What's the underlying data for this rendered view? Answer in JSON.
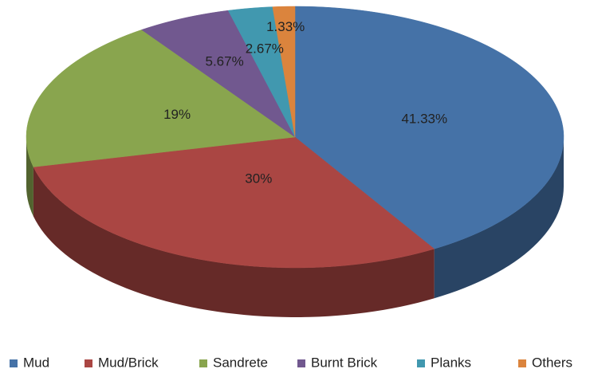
{
  "chart_data": {
    "type": "pie3d",
    "categories": [
      "Mud",
      "Mud/Brick",
      "Sandrete",
      "Burnt Brick",
      "Planks",
      "Others"
    ],
    "values": [
      41.33,
      30,
      19,
      5.67,
      2.67,
      1.33
    ],
    "value_labels": [
      "41.33%",
      "30%",
      "19%",
      "5.67%",
      "2.67%",
      "1.33%"
    ],
    "colors": [
      "#4572a7",
      "#aa4643",
      "#89a54e",
      "#71588f",
      "#4198af",
      "#db843d"
    ],
    "legend": "bottom"
  }
}
